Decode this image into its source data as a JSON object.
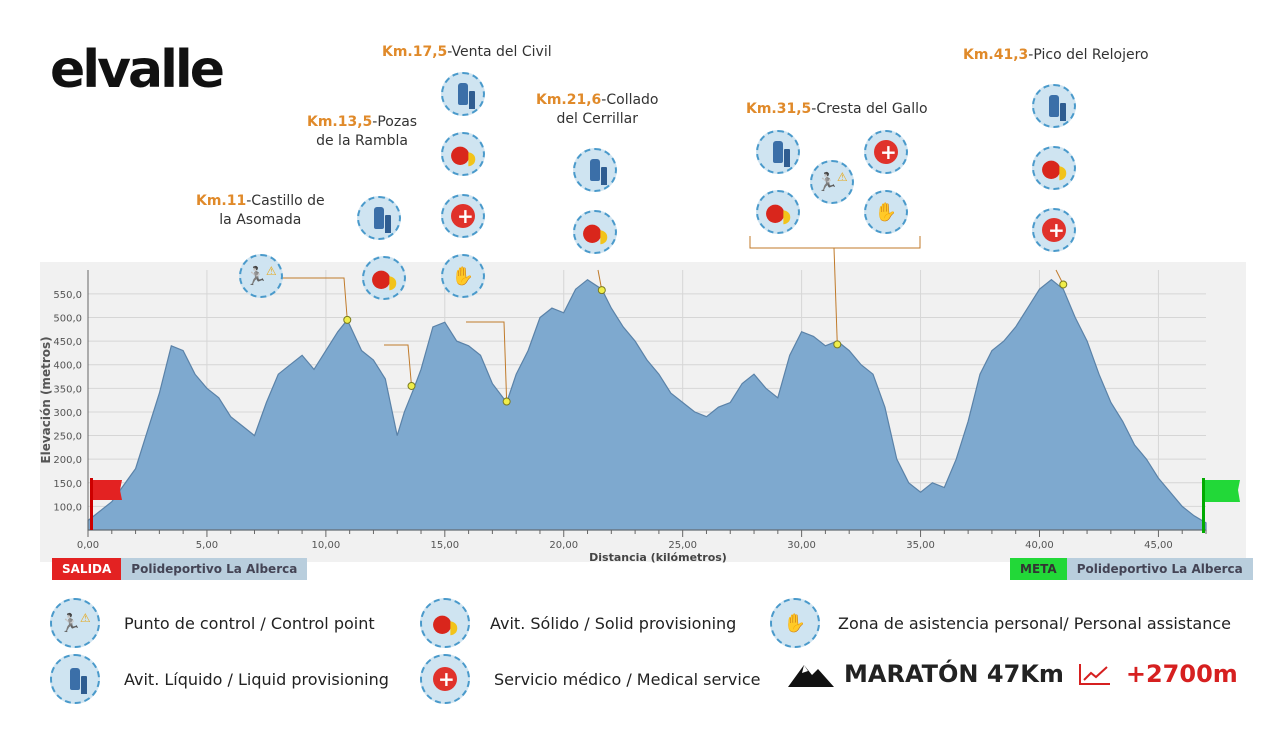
{
  "brand": {
    "logo_text": "elvalle"
  },
  "chart_data": {
    "type": "area",
    "xlabel": "Distancia (kilómetros)",
    "ylabel": "Elevación (metros)",
    "xlim": [
      0,
      47
    ],
    "ylim": [
      50,
      590
    ],
    "xticks": [
      "0,00",
      "5,00",
      "10,00",
      "15,00",
      "20,00",
      "25,00",
      "30,00",
      "35,00",
      "40,00",
      "45,00"
    ],
    "xtick_values": [
      0,
      5,
      10,
      15,
      20,
      25,
      30,
      35,
      40,
      45
    ],
    "yticks": [
      "100,0",
      "150,0",
      "200,0",
      "250,0",
      "300,0",
      "350,0",
      "400,0",
      "450,0",
      "500,0",
      "550,0"
    ],
    "ytick_values": [
      100,
      150,
      200,
      250,
      300,
      350,
      400,
      450,
      500,
      550
    ],
    "grid": true,
    "fill_color": "#7ea9cf",
    "line_color": "#5a82a8",
    "series": [
      {
        "x": [
          0,
          1,
          2,
          3,
          3.5,
          4,
          4.5,
          5,
          5.5,
          6,
          6.5,
          7,
          7.5,
          8,
          8.5,
          9,
          9.5,
          10,
          10.5,
          10.9,
          11.5,
          12,
          12.5,
          13,
          13.3,
          13.7,
          14,
          14.5,
          15,
          15.5,
          16,
          16.5,
          17,
          17.6,
          18,
          18.5,
          19,
          19.5,
          20,
          20.5,
          21,
          21.6,
          22,
          22.5,
          23,
          23.5,
          24,
          24.5,
          25,
          25.5,
          26,
          26.5,
          27,
          27.5,
          28,
          28.5,
          29,
          29.5,
          30,
          30.5,
          31,
          31.5,
          32,
          32.5,
          33,
          33.5,
          34,
          34.5,
          35,
          35.5,
          36,
          36.5,
          37,
          37.5,
          38,
          38.5,
          39,
          39.5,
          40,
          40.5,
          41,
          41.5,
          42,
          42.5,
          43,
          43.5,
          44,
          44.5,
          45,
          45.5,
          46,
          46.5,
          47
        ],
        "y": [
          70,
          110,
          180,
          340,
          440,
          430,
          380,
          350,
          330,
          290,
          270,
          250,
          320,
          380,
          400,
          420,
          390,
          430,
          470,
          495,
          430,
          410,
          370,
          250,
          300,
          350,
          390,
          480,
          490,
          450,
          440,
          420,
          360,
          320,
          380,
          430,
          500,
          520,
          510,
          560,
          580,
          560,
          520,
          480,
          450,
          410,
          380,
          340,
          320,
          300,
          290,
          310,
          320,
          360,
          380,
          350,
          330,
          420,
          470,
          460,
          440,
          450,
          430,
          400,
          380,
          310,
          200,
          150,
          130,
          150,
          140,
          200,
          280,
          380,
          430,
          450,
          480,
          520,
          560,
          580,
          560,
          500,
          450,
          380,
          320,
          280,
          230,
          200,
          160,
          130,
          100,
          80,
          65
        ]
      }
    ],
    "annotations": [
      {
        "km_label": "Km.11",
        "name": "-Castillo de",
        "name2": "la Asomada",
        "x": 10.9,
        "y": 495
      },
      {
        "km_label": "Km.13,5",
        "name": "-Pozas",
        "name2": "de la Rambla",
        "x": 13.6,
        "y": 355
      },
      {
        "km_label": "Km.17,5",
        "name": "-Venta del Civil",
        "name2": "",
        "x": 17.6,
        "y": 322
      },
      {
        "km_label": "Km.21,6",
        "name": "-Collado",
        "name2": "del Cerrillar",
        "x": 21.6,
        "y": 558
      },
      {
        "km_label": "Km.31,5",
        "name": "-Cresta del Gallo",
        "name2": "",
        "x": 31.5,
        "y": 443
      },
      {
        "km_label": "Km.41,3",
        "name": "-Pico del Relojero",
        "name2": "",
        "x": 41,
        "y": 570
      }
    ]
  },
  "start": {
    "tag": "SALIDA",
    "place": "Polideportivo La Alberca",
    "color": "#e32222"
  },
  "finish": {
    "tag": "META",
    "place": "Polideportivo La Alberca",
    "color": "#22d838"
  },
  "legend": [
    {
      "icon": "control-point-icon",
      "label": "Punto de control / Control point"
    },
    {
      "icon": "solid-provisioning-icon",
      "label": "Avit. Sólido / Solid provisioning"
    },
    {
      "icon": "personal-assistance-icon",
      "label": "Zona de asistencia personal/ Personal assistance"
    },
    {
      "icon": "liquid-provisioning-icon",
      "label": "Avit. Líquido / Liquid provisioning"
    },
    {
      "icon": "medical-service-icon",
      "label": "Servicio médico / Medical service"
    }
  ],
  "race": {
    "title": "MARATÓN 47Km",
    "gain": "+2700m"
  }
}
